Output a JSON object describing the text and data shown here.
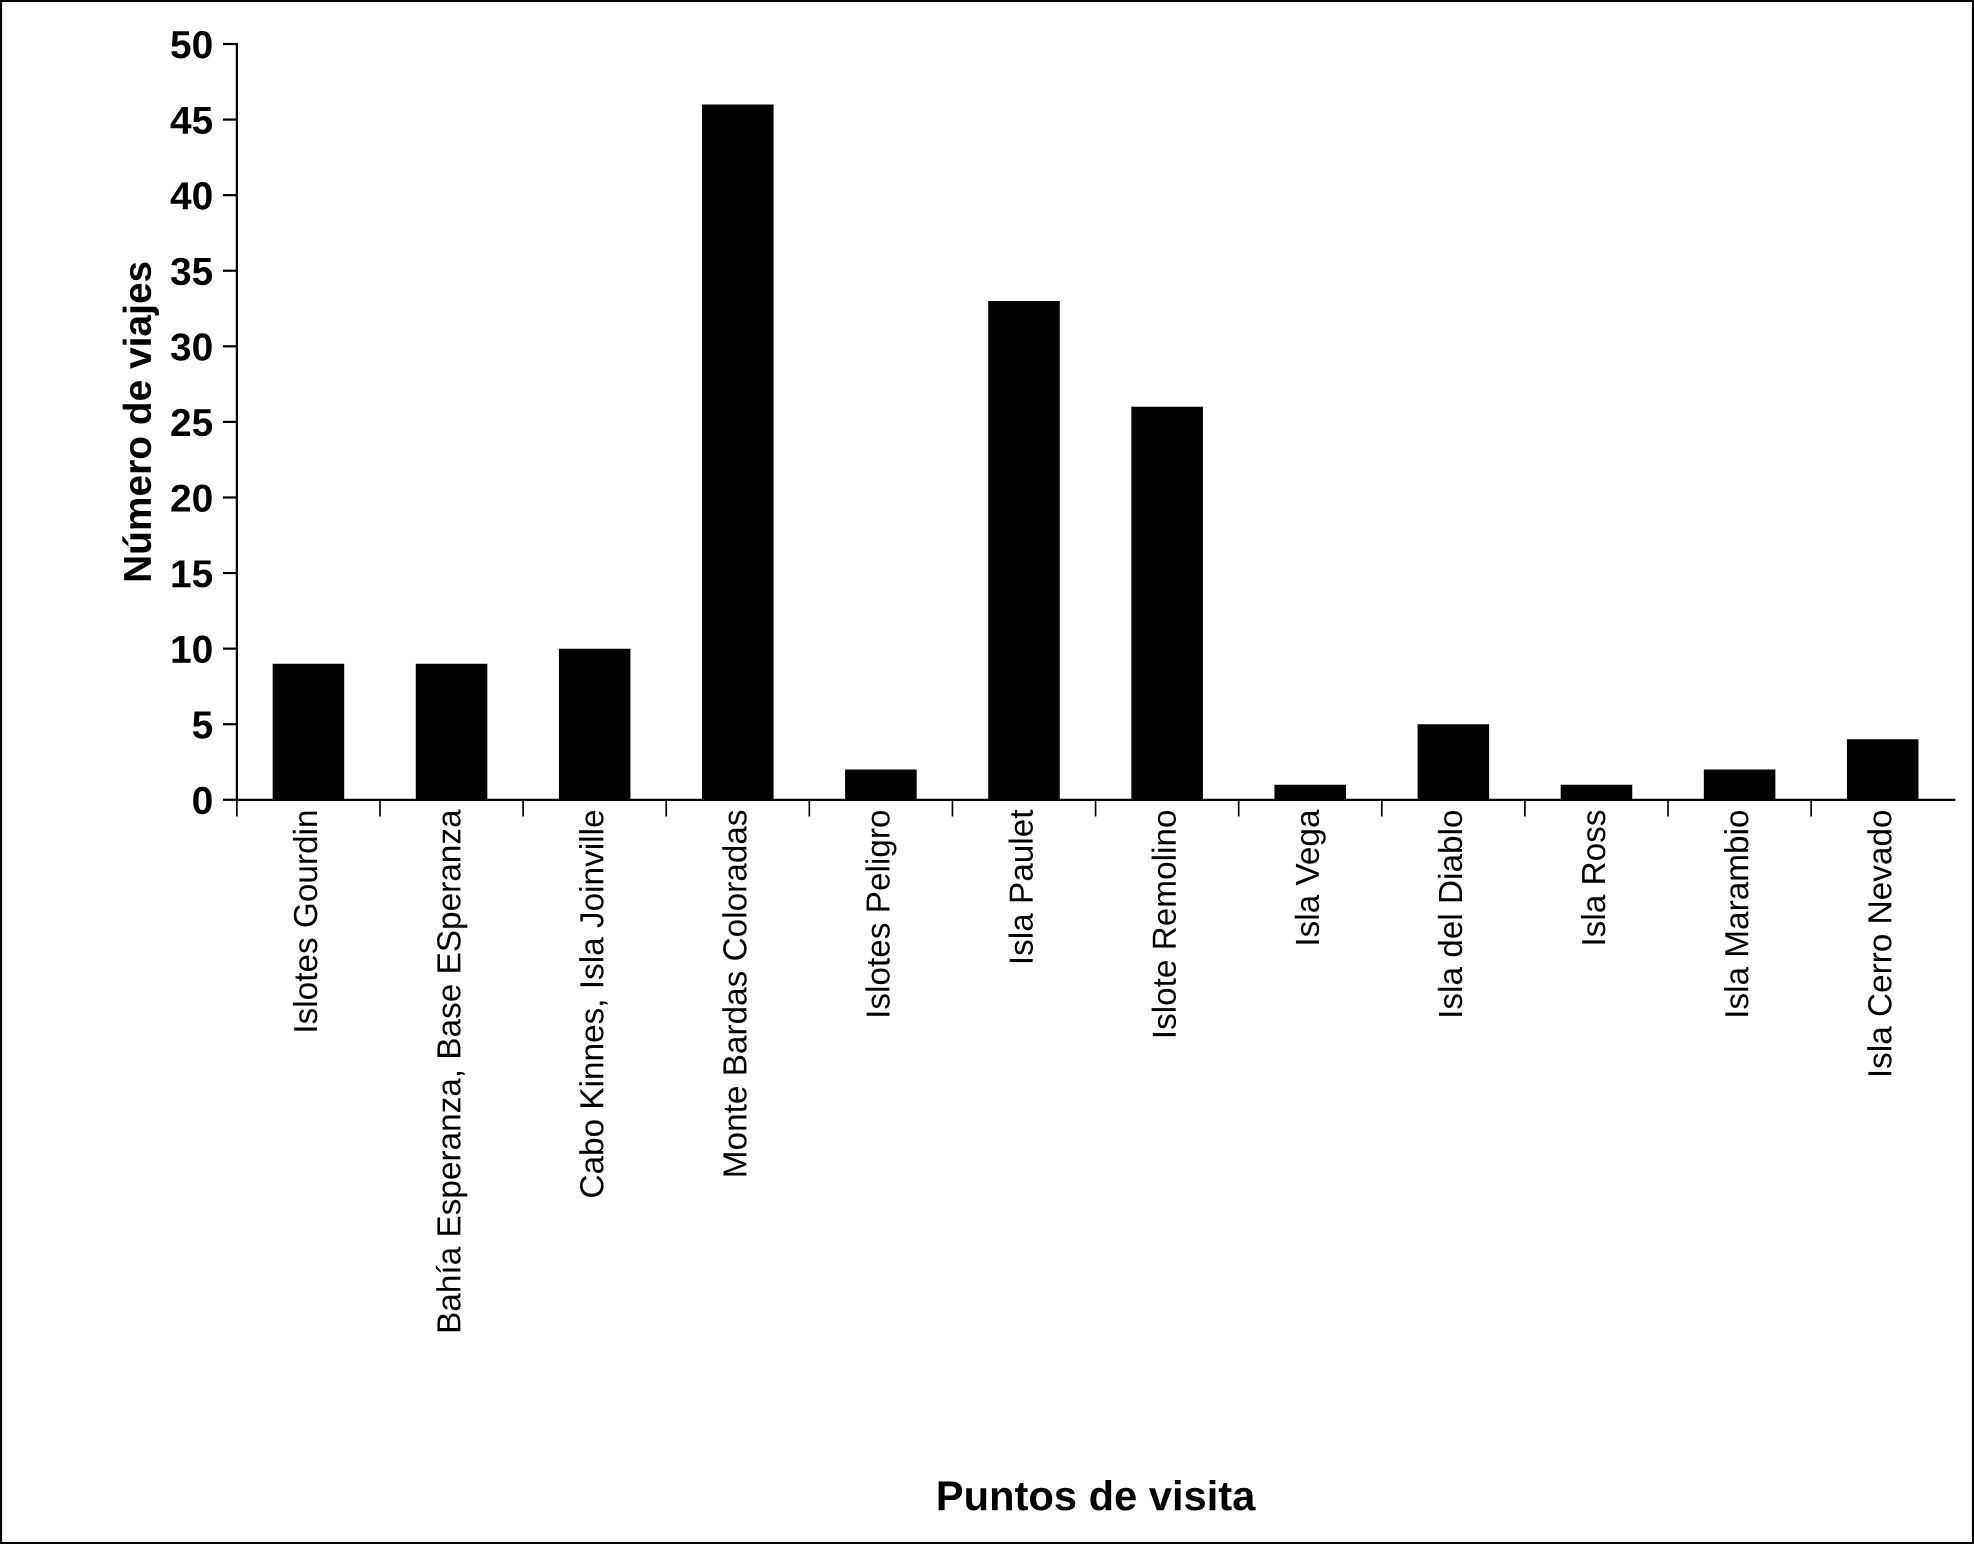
{
  "chart_data": {
    "type": "bar",
    "xlabel": "Puntos de visita",
    "ylabel": "Número de viajes",
    "categories": [
      "Islotes Gourdin",
      "Bahía Esperanza, Base ESperanza",
      "Cabo Kinnes, Isla Joinville",
      "Monte Bardas Coloradas",
      "Islotes Peligro",
      "Isla Paulet",
      "Islote Remolino",
      "Isla Vega",
      "Isla del Diablo",
      "Isla Ross",
      "Isla Marambio",
      "Isla Cerro Nevado"
    ],
    "values": [
      9,
      9,
      10,
      46,
      2,
      33,
      26,
      1,
      5,
      1,
      2,
      4
    ],
    "color": "#000000",
    "ylim": [
      0,
      50
    ],
    "yticks": [
      0,
      5,
      10,
      15,
      20,
      25,
      30,
      35,
      40,
      45,
      50
    ],
    "grid": false,
    "legend": false
  }
}
